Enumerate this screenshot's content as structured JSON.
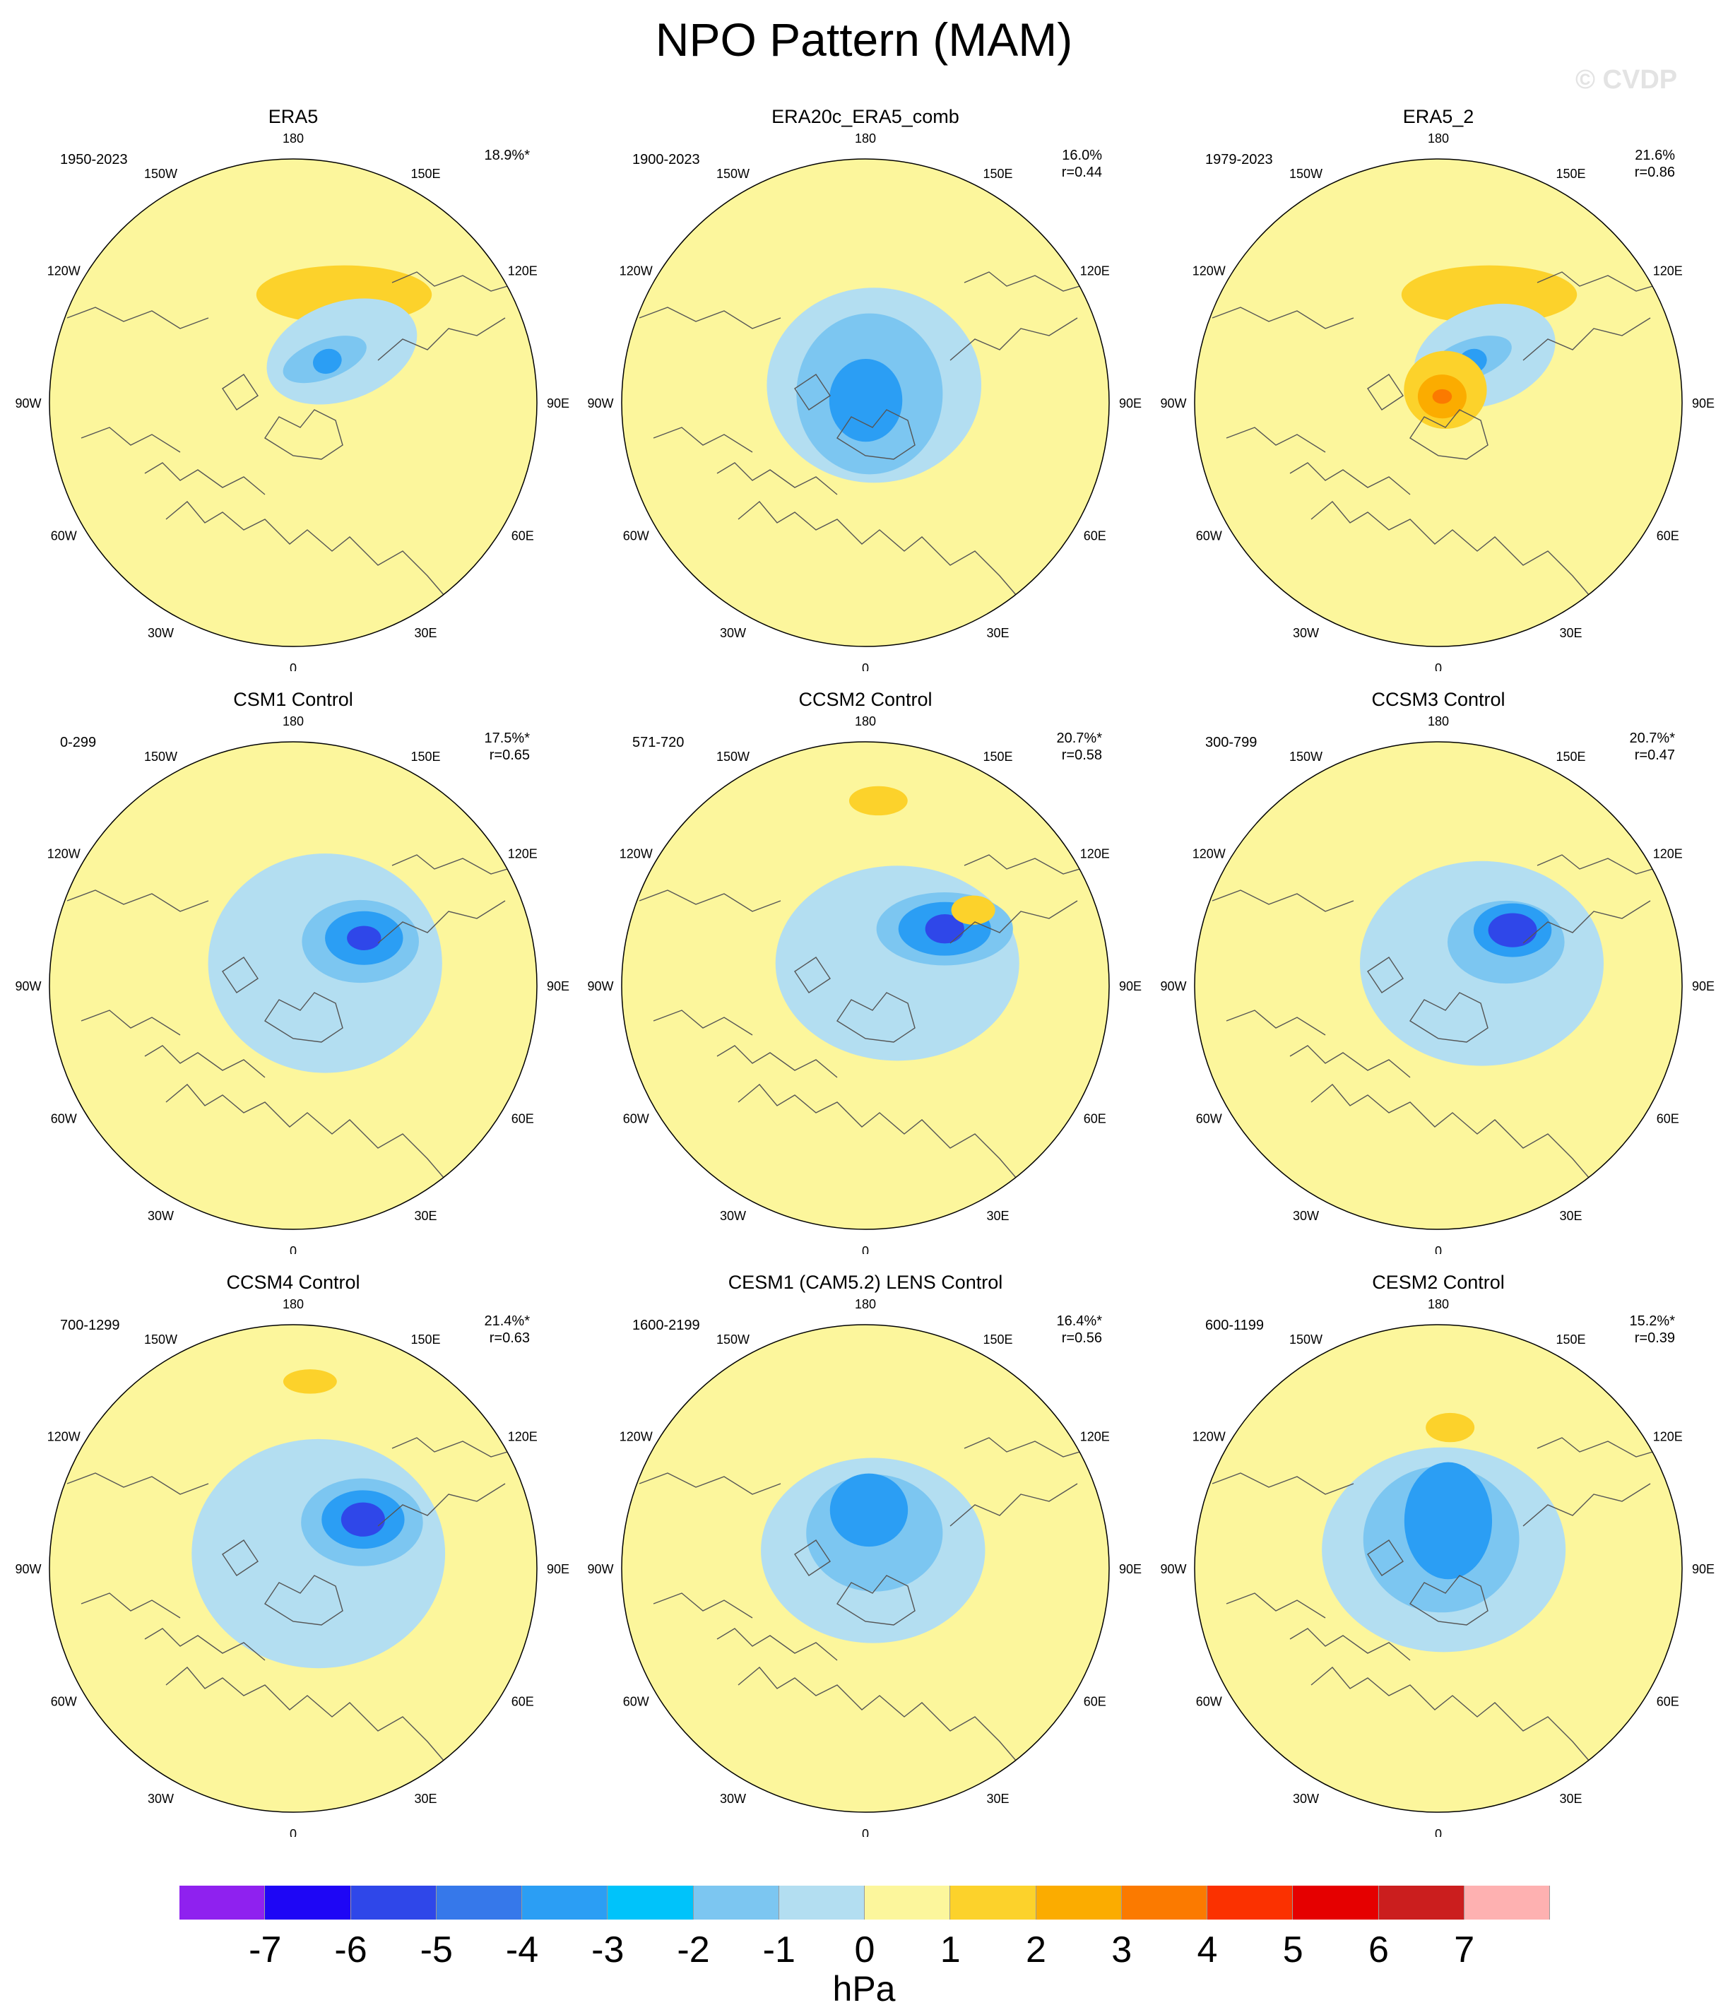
{
  "title": "NPO Pattern (MAM)",
  "watermark": "© CVDP",
  "lon_labels": [
    "180",
    "150E",
    "120E",
    "90E",
    "60E",
    "30E",
    "0",
    "30W",
    "60W",
    "90W",
    "120W",
    "150W"
  ],
  "panels": [
    {
      "name": "ERA5",
      "years": "1950-2023",
      "pct": "18.9%*",
      "r": "",
      "blobs": [
        [
          "1",
          0.49,
          0.44,
          0.36,
          0.12,
          0
        ],
        [
          "2",
          0.17,
          0.44,
          0.14,
          0.06,
          0
        ],
        [
          "3",
          0.17,
          0.44,
          0.05,
          0.025,
          0
        ],
        [
          "-1",
          0.29,
          0.76,
          0.32,
          0.2,
          -20
        ],
        [
          "-2",
          0.22,
          0.63,
          0.18,
          0.08,
          -20
        ],
        [
          "-3",
          0.22,
          0.69,
          0.06,
          0.05,
          -20
        ]
      ]
    },
    {
      "name": "ERA20c_ERA5_comb",
      "years": "1900-2023",
      "pct": "16.0%",
      "r": "r=0.44",
      "blobs": [
        [
          "-1",
          0.08,
          0.46,
          0.44,
          0.4,
          0
        ],
        [
          "-2",
          0.04,
          0.44,
          0.3,
          0.33,
          0
        ],
        [
          "-3",
          0.01,
          0.15,
          0.15,
          0.17,
          0
        ]
      ]
    },
    {
      "name": "ERA5_2",
      "years": "1979-2023",
      "pct": "21.6%",
      "r": "r=0.86",
      "blobs": [
        [
          "1",
          0.49,
          0.44,
          0.36,
          0.12,
          0
        ],
        [
          "2",
          0.17,
          0.44,
          0.14,
          0.06,
          0
        ],
        [
          "3",
          0.17,
          0.44,
          0.05,
          0.025,
          0
        ],
        [
          "-1",
          0.27,
          0.78,
          0.3,
          0.2,
          -20
        ],
        [
          "-2",
          0.22,
          0.63,
          0.18,
          0.08,
          -20
        ],
        [
          "-3",
          0.22,
          0.69,
          0.06,
          0.05,
          -20
        ],
        [
          "1",
          0.06,
          0.5,
          0.17,
          0.16,
          0
        ],
        [
          "2",
          0.03,
          0.55,
          0.1,
          0.09,
          0
        ],
        [
          "3",
          0.03,
          0.55,
          0.04,
          0.03,
          0
        ]
      ]
    },
    {
      "name": "CSM1 Control",
      "years": "0-299",
      "pct": "17.5%*",
      "r": "r=0.65",
      "blobs": [
        [
          "-1",
          0.16,
          0.96,
          0.48,
          0.45,
          0
        ],
        [
          "-2",
          0.33,
          0.99,
          0.24,
          0.17,
          0
        ],
        [
          "-3",
          0.35,
          0.98,
          0.16,
          0.11,
          0
        ],
        [
          "-4",
          0.35,
          0.98,
          0.07,
          0.05,
          0
        ]
      ]
    },
    {
      "name": "CCSM2 Control",
      "years": "571-720",
      "pct": "20.7%*",
      "r": "r=0.58",
      "blobs": [
        [
          "-1",
          0.16,
          0.96,
          0.5,
          0.4,
          0
        ],
        [
          "-2",
          0.4,
          0.95,
          0.28,
          0.15,
          0
        ],
        [
          "-3",
          0.4,
          0.95,
          0.19,
          0.11,
          0
        ],
        [
          "-4",
          0.4,
          0.95,
          0.08,
          0.06,
          0
        ],
        [
          "1",
          0.76,
          0.07,
          0.12,
          0.06,
          0
        ],
        [
          "1",
          0.54,
          0.96,
          0.09,
          0.06,
          0
        ]
      ]
    },
    {
      "name": "CCSM3 Control",
      "years": "300-799",
      "pct": "20.7%*",
      "r": "r=0.47",
      "blobs": [
        [
          "-1",
          0.2,
          1.1,
          0.5,
          0.42,
          0
        ],
        [
          "-2",
          0.33,
          1.0,
          0.24,
          0.17,
          0
        ],
        [
          "-3",
          0.38,
          0.93,
          0.16,
          0.11,
          0
        ],
        [
          "-4",
          0.38,
          0.93,
          0.1,
          0.07,
          0
        ]
      ]
    },
    {
      "name": "CCSM4 Control",
      "years": "700-1299",
      "pct": "21.4%*",
      "r": "r=0.63",
      "blobs": [
        [
          "-1",
          0.12,
          1.04,
          0.52,
          0.47,
          0
        ],
        [
          "1",
          0.77,
          0.09,
          0.11,
          0.05,
          0
        ],
        [
          "-2",
          0.34,
          0.98,
          0.25,
          0.18,
          0
        ],
        [
          "-3",
          0.35,
          0.96,
          0.17,
          0.12,
          0
        ],
        [
          "-4",
          0.35,
          0.96,
          0.09,
          0.07,
          0
        ]
      ]
    },
    {
      "name": "CESM1 (CAM5.2) LENS Control",
      "years": "1600-2199",
      "pct": "16.4%*",
      "r": "r=0.56",
      "blobs": [
        [
          "-1",
          0.08,
          0.4,
          0.46,
          0.38,
          0
        ],
        [
          "-2",
          0.15,
          0.25,
          0.28,
          0.24,
          0
        ],
        [
          "-3",
          0.24,
          0.06,
          0.16,
          0.15,
          0
        ]
      ]
    },
    {
      "name": "CESM2 Control",
      "years": "600-1199",
      "pct": "15.2%*",
      "r": "r=0.39",
      "blobs": [
        [
          "-1",
          0.08,
          0.28,
          0.5,
          0.42,
          0
        ],
        [
          "-2",
          0.12,
          0.1,
          0.32,
          0.3,
          0
        ],
        [
          "-3",
          0.2,
          6.08,
          0.18,
          0.24,
          0
        ],
        [
          "1",
          0.58,
          6.2,
          0.1,
          0.06,
          0
        ]
      ]
    }
  ],
  "colorbar": {
    "units": "hPa",
    "labels": [
      "-7",
      "-6",
      "-5",
      "-4",
      "-3",
      "-2",
      "-1",
      "0",
      "1",
      "2",
      "3",
      "4",
      "5",
      "6",
      "7"
    ],
    "colors": [
      "#8f21ef",
      "#1e06f5",
      "#2f47e9",
      "#3678ea",
      "#2b9ef4",
      "#00c3fa",
      "#7cc6f1",
      "#b3def1",
      "#fcf69c",
      "#fcd22b",
      "#fbac00",
      "#fb7a00",
      "#fb3100",
      "#e50000",
      "#cb1e1e",
      "#feb1b1"
    ]
  },
  "level_colors": {
    "-4": "#2f47e9",
    "-3": "#2b9ef4",
    "-2": "#7cc6f1",
    "-1": "#b3def1",
    "0": "#fcf69c",
    "1": "#fcd22b",
    "2": "#fbac00",
    "3": "#fb7a00"
  }
}
